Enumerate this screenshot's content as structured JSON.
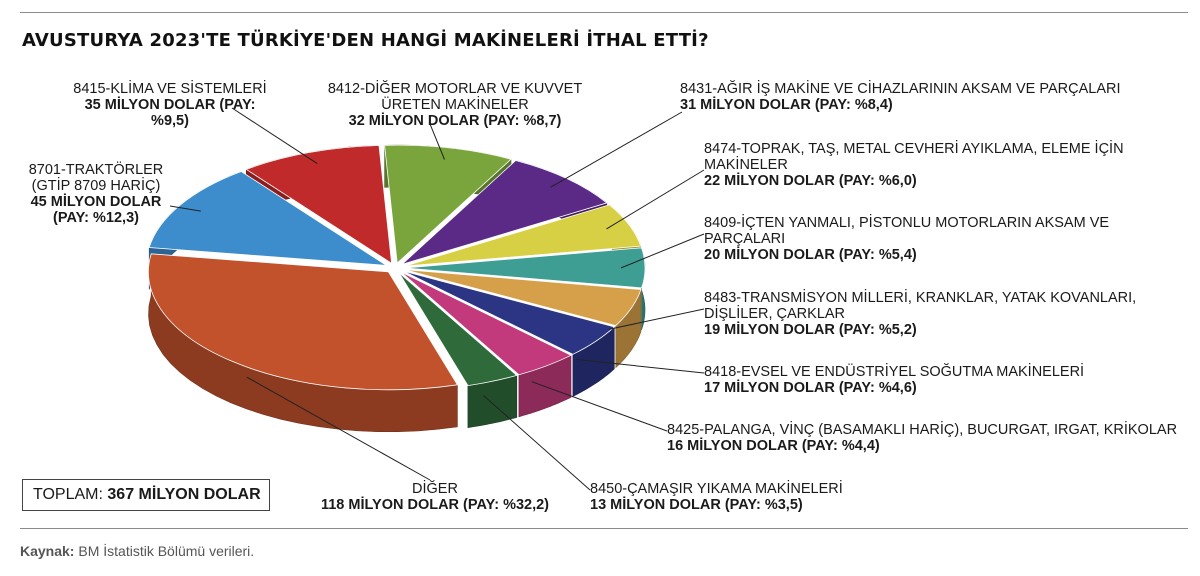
{
  "title": "AVUSTURYA 2023'TE TÜRKİYE'DEN HANGİ MAKİNELERİ İTHAL ETTİ?",
  "total": {
    "label": "TOPLAM:",
    "value": "367 MİLYON DOLAR"
  },
  "source": {
    "label": "Kaynak:",
    "text": "BM İstatistik Bölümü verileri."
  },
  "chart_data": {
    "type": "pie",
    "title": "AVUSTURYA 2023'TE TÜRKİYE'DEN HANGİ MAKİNELERİ İTHAL ETTİ?",
    "unit": "MİLYON DOLAR",
    "total": 367,
    "slices": [
      {
        "name": "8412-DİĞER MOTORLAR VE KUVVET ÜRETEN MAKİNELER",
        "value": 32,
        "share": 8.7,
        "value_label": "32 MİLYON DOLAR (PAY: %8,7)",
        "color": "#7aa43c"
      },
      {
        "name": "8431-AĞIR İŞ MAKİNE VE CİHAZLARININ AKSAM VE PARÇALARI",
        "value": 31,
        "share": 8.4,
        "value_label": "31 MİLYON DOLAR (PAY: %8,4)",
        "color": "#5a2a86"
      },
      {
        "name": "8474-TOPRAK, TAŞ, METAL CEVHERİ AYIKLAMA, ELEME İÇİN MAKİNELER",
        "value": 22,
        "share": 6.0,
        "value_label": "22 MİLYON DOLAR (PAY: %6,0)",
        "color": "#d7cf44"
      },
      {
        "name": "8409-İÇTEN YANMALI, PİSTONLU MOTORLARIN AKSAM VE PARÇALARI",
        "value": 20,
        "share": 5.4,
        "value_label": "20 MİLYON DOLAR (PAY: %5,4)",
        "color": "#3e9e94"
      },
      {
        "name": "8483-TRANSMİSYON MİLLERİ, KRANKLAR, YATAK KOVANLARI, DİŞLİLER, ÇARKLAR",
        "value": 19,
        "share": 5.2,
        "value_label": "19 MİLYON DOLAR (PAY: %5,2)",
        "color": "#d6a04a"
      },
      {
        "name": "8418-EVSEL VE ENDÜSTRİYEL SOĞUTMA MAKİNELERİ",
        "value": 17,
        "share": 4.6,
        "value_label": "17 MİLYON DOLAR (PAY: %4,6)",
        "color": "#2b3584"
      },
      {
        "name": "8425-PALANGA, VİNÇ (BASAMAKLI HARİÇ), BUCURGAT, IRGAT, KRİKOLAR",
        "value": 16,
        "share": 4.4,
        "value_label": "16 MİLYON DOLAR (PAY: %4,4)",
        "color": "#c23a7c"
      },
      {
        "name": "8450-ÇAMAŞIR YIKAMA MAKİNELERİ",
        "value": 13,
        "share": 3.5,
        "value_label": "13 MİLYON DOLAR (PAY: %3,5)",
        "color": "#2f6b3a"
      },
      {
        "name": "DİĞER",
        "value": 118,
        "share": 32.2,
        "value_label": "118 MİLYON DOLAR (PAY: %32,2)",
        "color": "#c2522c"
      },
      {
        "name": "8701-TRAKTÖRLER (GTİP 8709 HARİÇ)",
        "value": 45,
        "share": 12.3,
        "value_label": "45 MİLYON DOLAR (PAY: %12,3)",
        "color": "#3d8ccc"
      },
      {
        "name": "8415-KLİMA VE SİSTEMLERİ",
        "value": 35,
        "share": 9.5,
        "value_label": "35 MİLYON DOLAR (PAY: %9,5)",
        "color": "#c02a2a"
      }
    ]
  },
  "labels": {
    "s8415": {
      "line1": "8415-KLİMA VE SİSTEMLERİ",
      "val": "35 MİLYON DOLAR (PAY: %9,5)"
    },
    "s8412": {
      "line1": "8412-DİĞER MOTORLAR VE KUVVET",
      "line2": "ÜRETEN MAKİNELER",
      "val": "32 MİLYON DOLAR (PAY: %8,7)"
    },
    "s8431": {
      "line1": "8431-AĞIR İŞ MAKİNE VE CİHAZLARININ AKSAM VE PARÇALARI",
      "val": "31 MİLYON DOLAR (PAY: %8,4)"
    },
    "s8474": {
      "line1": "8474-TOPRAK, TAŞ, METAL CEVHERİ AYIKLAMA, ELEME İÇİN",
      "line2": "MAKİNELER",
      "val": "22 MİLYON DOLAR (PAY: %6,0)"
    },
    "s8409": {
      "line1": "8409-İÇTEN YANMALI, PİSTONLU MOTORLARIN AKSAM VE",
      "line2": "PARÇALARI",
      "val": "20 MİLYON DOLAR (PAY: %5,4)"
    },
    "s8483": {
      "line1": "8483-TRANSMİSYON MİLLERİ, KRANKLAR, YATAK KOVANLARI,",
      "line2": "DİŞLİLER, ÇARKLAR",
      "val": "19 MİLYON DOLAR (PAY: %5,2)"
    },
    "s8418": {
      "line1": "8418-EVSEL VE ENDÜSTRİYEL SOĞUTMA MAKİNELERİ",
      "val": "17 MİLYON DOLAR (PAY: %4,6)"
    },
    "s8425": {
      "line1": "8425-PALANGA, VİNÇ (BASAMAKLI HARİÇ), BUCURGAT, IRGAT, KRİKOLAR",
      "val": "16 MİLYON DOLAR (PAY: %4,4)"
    },
    "s8450": {
      "line1": "8450-ÇAMAŞIR YIKAMA MAKİNELERİ",
      "val": "13 MİLYON DOLAR (PAY: %3,5)"
    },
    "sdiger": {
      "line1": "DİĞER",
      "val": "118 MİLYON DOLAR (PAY: %32,2)"
    },
    "s8701": {
      "line1": "8701-TRAKTÖRLER",
      "line2": "(GTİP 8709 HARİÇ)",
      "val1": "45 MİLYON DOLAR",
      "val2": "(PAY: %12,3)"
    }
  }
}
